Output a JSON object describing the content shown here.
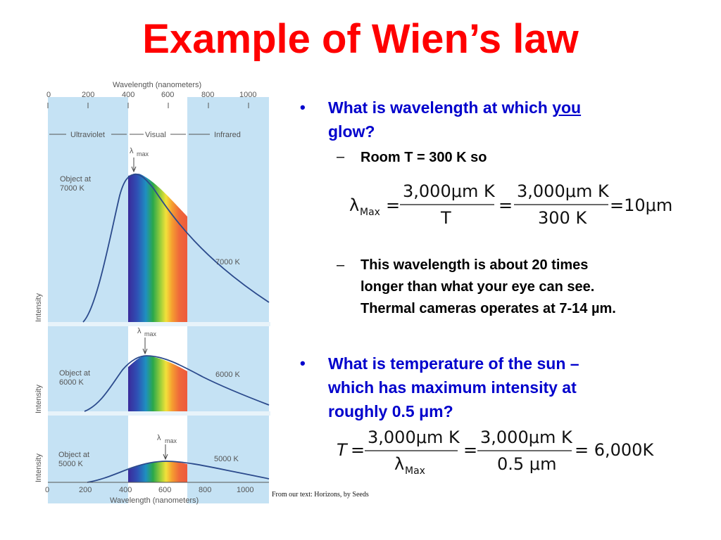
{
  "title": "Example of Wien’s law",
  "figure": {
    "top_axis_label": "Wavelength (nanometers)",
    "bottom_axis_label": "Wavelength (nanometers)",
    "ticks": [
      "0",
      "200",
      "400",
      "600",
      "800",
      "1000"
    ],
    "regions": [
      "Ultraviolet",
      "Visual",
      "Infrared"
    ],
    "lambda_max": "λ",
    "lambda_max_sub": "max",
    "intensity_label": "Intensity",
    "panels": [
      {
        "object_label_1": "Object at",
        "object_label_2": "7000 K",
        "curve_label": "7000 K"
      },
      {
        "object_label_1": "Object at",
        "object_label_2": "6000 K",
        "curve_label": "6000 K"
      },
      {
        "object_label_1": "Object at",
        "object_label_2": "5000 K",
        "curve_label": "5000 K"
      }
    ]
  },
  "bullet1": {
    "marker": "•",
    "text_before": "What is wavelength at which ",
    "text_underlined": "you",
    "text_after": "glow?",
    "sub1": {
      "marker": "–",
      "text": "Room T = 300 K so"
    },
    "sub2": {
      "marker": "–",
      "line1": "This wavelength is about 20 times",
      "line2": "longer than what your eye can see.",
      "line3": "Thermal cameras operates at 7-14 µm."
    }
  },
  "equation1": {
    "lhs": "λ",
    "lhs_sub": "Max",
    "eq": "=",
    "num1": "3,000μm K",
    "den1": "T",
    "num2": "3,000μm K",
    "den2": "300 K",
    "result": "=10μm"
  },
  "bullet2": {
    "marker": "•",
    "line1": "What is temperature of the sun –",
    "line2": "which has maximum intensity at",
    "line3": "roughly 0.5 μm?"
  },
  "equation2": {
    "lhs": "T",
    "eq": "=",
    "num1": "3,000μm K",
    "den1_sym": "λ",
    "den1_sub": "Max",
    "num2": "3,000μm K",
    "den2": "0.5 μm",
    "result": "= 6,000K"
  },
  "caption": "From our text:  Horizons, by Seeds"
}
